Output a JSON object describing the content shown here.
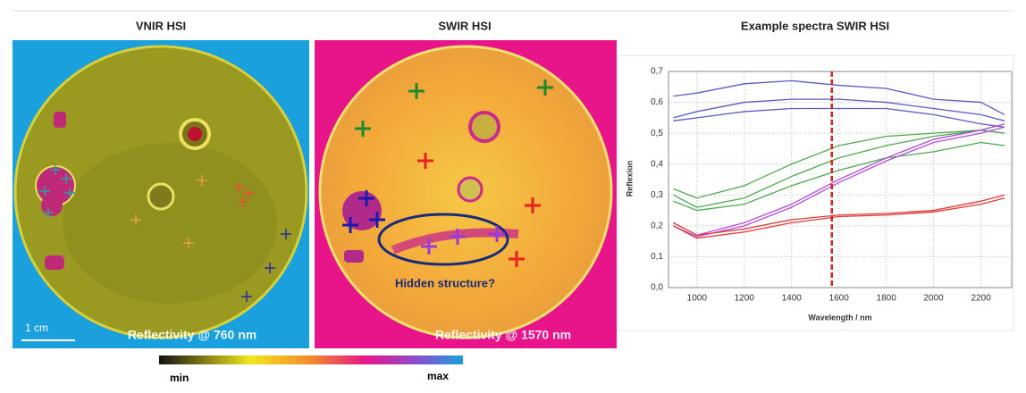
{
  "panels": [
    {
      "title": "VNIR HSI",
      "scale_label": "1 cm",
      "caption": "Reflectivity @ 760 nm"
    },
    {
      "title": "SWIR HSI",
      "annotation": "Hidden structure?",
      "caption": "Reflectivity @ 1570 nm"
    },
    {
      "title": "Example spectra SWIR HSI"
    }
  ],
  "colorbar": {
    "min_label": "min",
    "max_label": "max"
  },
  "chart_data": {
    "type": "line",
    "x_label": "Wavelength / nm",
    "y_label": "Reflexion",
    "x": [
      900,
      1000,
      1200,
      1400,
      1600,
      1800,
      2000,
      2200,
      2300
    ],
    "series": [
      {
        "color": "#5a5ac8",
        "values": [
          0.62,
          0.63,
          0.66,
          0.67,
          0.655,
          0.645,
          0.61,
          0.6,
          0.56
        ]
      },
      {
        "color": "#5a5ac8",
        "values": [
          0.55,
          0.57,
          0.6,
          0.61,
          0.61,
          0.6,
          0.58,
          0.56,
          0.54
        ]
      },
      {
        "color": "#5a5ac8",
        "values": [
          0.54,
          0.55,
          0.57,
          0.58,
          0.58,
          0.58,
          0.56,
          0.53,
          0.52
        ]
      },
      {
        "color": "#4caa4c",
        "values": [
          0.32,
          0.29,
          0.33,
          0.4,
          0.46,
          0.49,
          0.5,
          0.51,
          0.5
        ]
      },
      {
        "color": "#4caa4c",
        "values": [
          0.3,
          0.26,
          0.29,
          0.36,
          0.42,
          0.46,
          0.49,
          0.51,
          0.5
        ]
      },
      {
        "color": "#4caa4c",
        "values": [
          0.28,
          0.25,
          0.27,
          0.33,
          0.38,
          0.42,
          0.44,
          0.47,
          0.46
        ]
      },
      {
        "color": "#b04ed8",
        "values": [
          0.21,
          0.17,
          0.21,
          0.27,
          0.35,
          0.42,
          0.48,
          0.51,
          0.53
        ]
      },
      {
        "color": "#b04ed8",
        "values": [
          0.2,
          0.165,
          0.2,
          0.26,
          0.34,
          0.41,
          0.47,
          0.5,
          0.52
        ]
      },
      {
        "color": "#e03a3a",
        "values": [
          0.21,
          0.17,
          0.19,
          0.22,
          0.235,
          0.24,
          0.25,
          0.28,
          0.3
        ]
      },
      {
        "color": "#e03a3a",
        "values": [
          0.2,
          0.16,
          0.18,
          0.21,
          0.23,
          0.235,
          0.245,
          0.27,
          0.29
        ]
      }
    ],
    "marker_x": 1570,
    "marker_color": "#d62020",
    "xlim": [
      880,
      2330
    ],
    "ylim": [
      0,
      0.7
    ],
    "xticks": [
      1000,
      1200,
      1400,
      1600,
      1800,
      2000,
      2200
    ],
    "yticks": [
      {
        "value": 0,
        "label": "0,0"
      },
      {
        "value": 0.1,
        "label": "0,1"
      },
      {
        "value": 0.2,
        "label": "0,2"
      },
      {
        "value": 0.3,
        "label": "0,3"
      },
      {
        "value": 0.4,
        "label": "0,4"
      },
      {
        "value": 0.5,
        "label": "0,5"
      },
      {
        "value": 0.6,
        "label": "0,6"
      },
      {
        "value": 0.7,
        "label": "0,7"
      }
    ],
    "grid": true
  }
}
